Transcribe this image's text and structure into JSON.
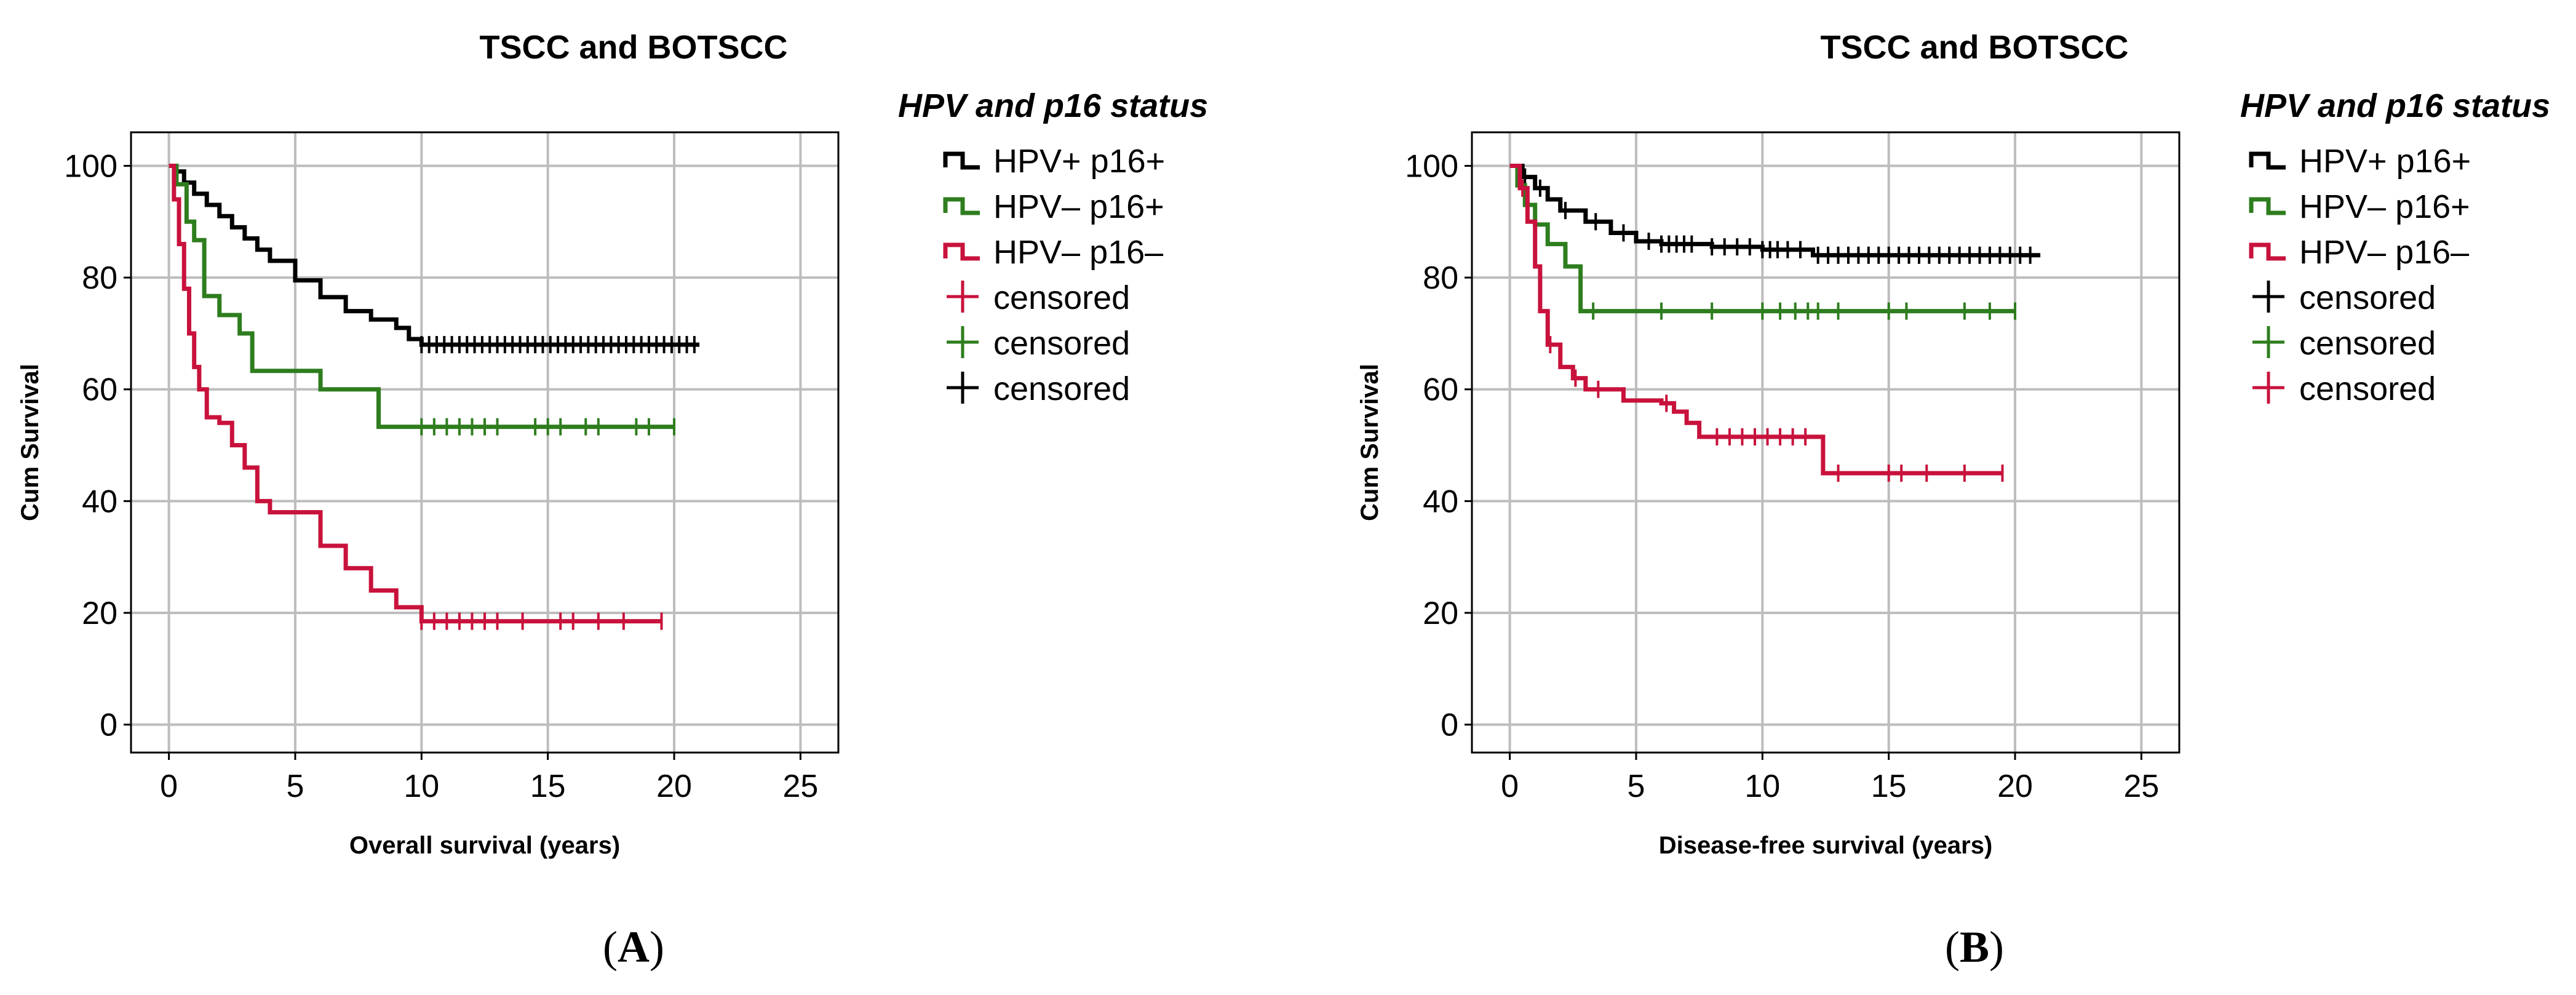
{
  "chart_data": [
    {
      "type": "line",
      "panel": "A",
      "title": "TSCC and BOTSCC",
      "xlabel": "Overall survival (years)",
      "ylabel": "Cum Survival",
      "xlim": [
        -1.5,
        26.5
      ],
      "ylim": [
        -5,
        106
      ],
      "xticks": [
        0,
        5,
        10,
        15,
        20,
        25
      ],
      "yticks": [
        0,
        20,
        40,
        60,
        80,
        100
      ],
      "grid": true,
      "legend_title": "HPV and p16 status",
      "legend": [
        {
          "kind": "line",
          "label": "HPV+ p16+",
          "color": "#000000"
        },
        {
          "kind": "line",
          "label": "HPV– p16+",
          "color": "#2e7d1e"
        },
        {
          "kind": "line",
          "label": "HPV– p16–",
          "color": "#c8123c"
        },
        {
          "kind": "censor",
          "label": "censored",
          "color": "#c8123c"
        },
        {
          "kind": "censor",
          "label": "censored",
          "color": "#2e7d1e"
        },
        {
          "kind": "censor",
          "label": "censored",
          "color": "#000000"
        }
      ],
      "series": [
        {
          "name": "HPV+ p16+",
          "color": "#000000",
          "x": [
            0,
            0.3,
            0.6,
            1.0,
            1.5,
            2.0,
            2.5,
            3.0,
            3.5,
            4.0,
            5.0,
            6.0,
            7.0,
            8.0,
            9.0,
            9.5,
            10.0,
            21.0
          ],
          "y": [
            100,
            99,
            97,
            95,
            93,
            91,
            89,
            87,
            85,
            83,
            79.5,
            76.5,
            74,
            72.5,
            71,
            69,
            68,
            68
          ],
          "censor_x": [
            10.0,
            10.3,
            10.6,
            10.9,
            11.2,
            11.5,
            11.8,
            12.1,
            12.4,
            12.7,
            13.0,
            13.3,
            13.6,
            13.9,
            14.2,
            14.5,
            14.8,
            15.1,
            15.4,
            15.7,
            16.0,
            16.3,
            16.6,
            16.9,
            17.2,
            17.5,
            17.8,
            18.1,
            18.4,
            18.7,
            19.0,
            19.3,
            19.6,
            19.9,
            20.2,
            20.5,
            20.8
          ]
        },
        {
          "name": "HPV– p16+",
          "color": "#2e7d1e",
          "x": [
            0,
            0.3,
            0.7,
            1.0,
            1.4,
            2.0,
            2.8,
            3.3,
            6.0,
            8.3,
            20.0
          ],
          "y": [
            100,
            96.7,
            90,
            86.7,
            76.7,
            73.3,
            70,
            63.3,
            60,
            53.3,
            53.3
          ],
          "censor_x": [
            10.0,
            10.5,
            11.0,
            11.5,
            12.0,
            12.5,
            13.0,
            14.5,
            15.0,
            15.5,
            16.5,
            17.0,
            18.5,
            19.0,
            20.0
          ]
        },
        {
          "name": "HPV– p16–",
          "color": "#c8123c",
          "x": [
            0,
            0.2,
            0.4,
            0.6,
            0.8,
            1.0,
            1.2,
            1.5,
            2.0,
            2.5,
            3.0,
            3.5,
            4.0,
            6.0,
            7.0,
            8.0,
            9.0,
            10.0,
            19.5
          ],
          "y": [
            100,
            94,
            86,
            78,
            70,
            64,
            60,
            55,
            54,
            50,
            46,
            40,
            38,
            32,
            28,
            24,
            21,
            18.5,
            18.5
          ],
          "censor_x": [
            10.0,
            10.5,
            11.0,
            11.5,
            12.0,
            12.5,
            13.0,
            14.0,
            15.5,
            16.0,
            17.0,
            18.0,
            19.5
          ]
        }
      ]
    },
    {
      "type": "line",
      "panel": "B",
      "title": "TSCC and BOTSCC",
      "xlabel": "Disease-free survival (years)",
      "ylabel": "Cum Survival",
      "xlim": [
        -1.5,
        26.5
      ],
      "ylim": [
        -5,
        106
      ],
      "xticks": [
        0,
        5,
        10,
        15,
        20,
        25
      ],
      "yticks": [
        0,
        20,
        40,
        60,
        80,
        100
      ],
      "grid": true,
      "legend_title": "HPV and p16 status",
      "legend": [
        {
          "kind": "line",
          "label": "HPV+ p16+",
          "color": "#000000"
        },
        {
          "kind": "line",
          "label": "HPV– p16+",
          "color": "#2e7d1e"
        },
        {
          "kind": "line",
          "label": "HPV– p16–",
          "color": "#c8123c"
        },
        {
          "kind": "censor",
          "label": "censored",
          "color": "#000000"
        },
        {
          "kind": "censor",
          "label": "censored",
          "color": "#2e7d1e"
        },
        {
          "kind": "censor",
          "label": "censored",
          "color": "#c8123c"
        }
      ],
      "series": [
        {
          "name": "HPV+ p16+",
          "color": "#000000",
          "x": [
            0,
            0.5,
            1.0,
            1.5,
            2.0,
            3.0,
            4.0,
            5.0,
            6.0,
            8.0,
            10.0,
            12.0,
            21.0
          ],
          "y": [
            100,
            98,
            96,
            94,
            92,
            90,
            88,
            86.5,
            86,
            85.5,
            85,
            84,
            84
          ],
          "censor_x": [
            0.6,
            1.2,
            2.2,
            3.4,
            4.5,
            5.5,
            6.0,
            6.3,
            6.6,
            6.9,
            7.2,
            8.0,
            8.5,
            9.0,
            9.5,
            10.0,
            10.3,
            10.6,
            11.0,
            11.5,
            12.2,
            12.6,
            13.0,
            13.4,
            13.8,
            14.2,
            14.6,
            15.0,
            15.4,
            15.8,
            16.2,
            16.6,
            17.0,
            17.4,
            17.8,
            18.2,
            18.6,
            19.0,
            19.4,
            19.8,
            20.2,
            20.6
          ]
        },
        {
          "name": "HPV– p16+",
          "color": "#2e7d1e",
          "x": [
            0,
            0.3,
            0.6,
            1.0,
            1.5,
            2.2,
            2.8,
            20.0
          ],
          "y": [
            100,
            96.5,
            93,
            89.5,
            86,
            82,
            74,
            74
          ],
          "censor_x": [
            3.3,
            6.0,
            8.0,
            10.0,
            10.7,
            11.3,
            11.8,
            12.2,
            13.0,
            15.0,
            15.7,
            18.0,
            19.0,
            20.0
          ]
        },
        {
          "name": "HPV– p16–",
          "color": "#c8123c",
          "x": [
            0,
            0.4,
            0.7,
            1.0,
            1.2,
            1.5,
            2.0,
            2.5,
            3.0,
            4.5,
            6.0,
            6.5,
            7.0,
            7.5,
            12.4,
            19.5
          ],
          "y": [
            100,
            96,
            90,
            82,
            74,
            68,
            64,
            62,
            60,
            58,
            57.5,
            56,
            54,
            51.5,
            45,
            45
          ],
          "censor_x": [
            0.5,
            1.6,
            2.6,
            3.5,
            6.2,
            8.2,
            8.7,
            9.2,
            9.7,
            10.2,
            10.7,
            11.2,
            11.7,
            13.0,
            15.0,
            15.5,
            16.5,
            18.0,
            19.5
          ]
        }
      ]
    }
  ]
}
